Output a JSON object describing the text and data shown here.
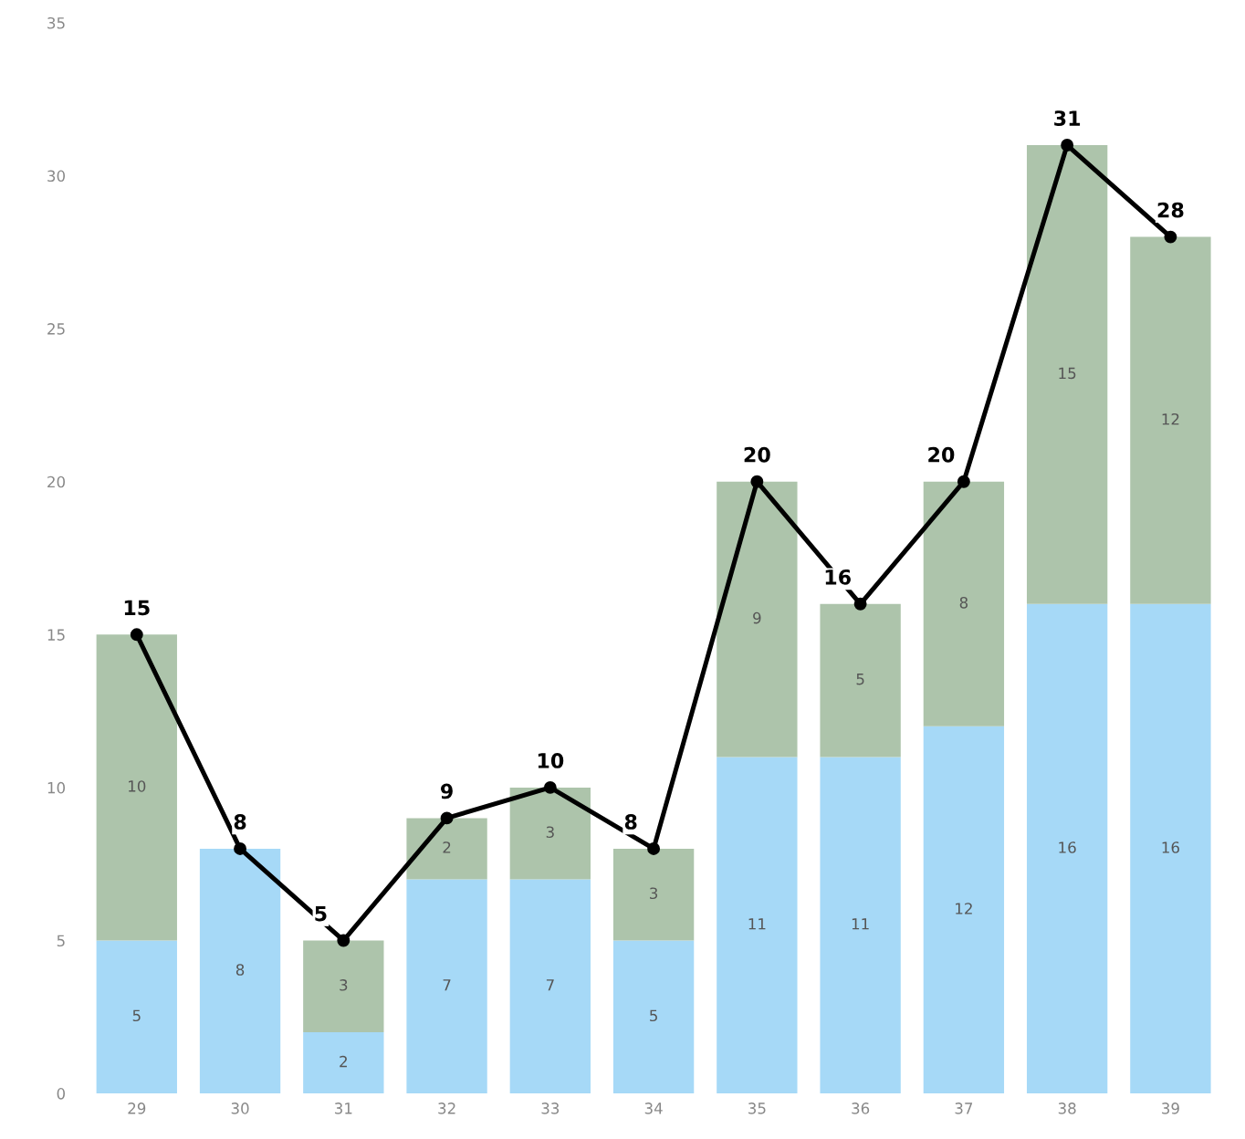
{
  "chart_data": {
    "type": "bar",
    "stacked": true,
    "categories": [
      "29",
      "30",
      "31",
      "32",
      "33",
      "34",
      "35",
      "36",
      "37",
      "38",
      "39"
    ],
    "series": [
      {
        "color": "#a6d9f7",
        "values": [
          5,
          8,
          2,
          7,
          7,
          5,
          11,
          11,
          12,
          16,
          16
        ]
      },
      {
        "color": "#adc4ab",
        "values": [
          10,
          null,
          3,
          2,
          3,
          3,
          9,
          5,
          8,
          15,
          12
        ]
      },
      {
        "type": "line",
        "color": "#000000",
        "marker": "circle",
        "values": [
          15,
          8,
          5,
          9,
          10,
          8,
          20,
          16,
          20,
          31,
          28
        ]
      }
    ],
    "data_labels": true,
    "ylim": [
      0,
      35
    ],
    "yticks": [
      0,
      5,
      10,
      15,
      20,
      25,
      30,
      35
    ],
    "grid": false,
    "legend": false
  }
}
